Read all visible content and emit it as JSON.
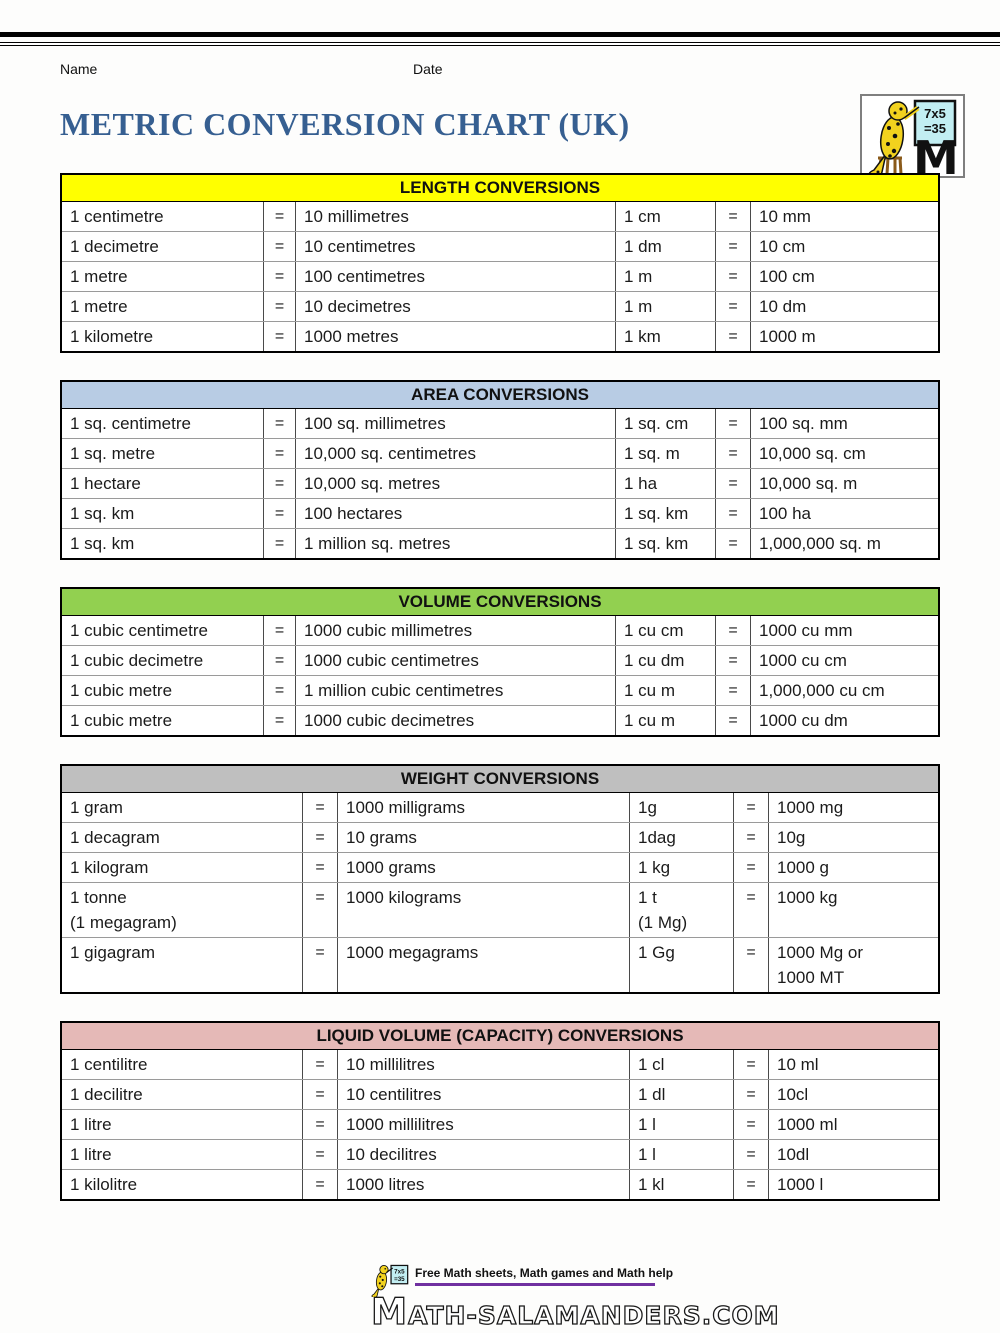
{
  "page": {
    "name_label": "Name",
    "date_label": "Date",
    "title": "METRIC CONVERSION CHART (UK)",
    "title_color": "#365f91"
  },
  "logo": {
    "board_line1": "7x5",
    "board_line2": "=35",
    "letter": "M"
  },
  "tables": [
    {
      "title": "LENGTH CONVERSIONS",
      "header_color": "#ffff00",
      "rows": [
        [
          "1 centimetre",
          "=",
          "10 millimetres",
          "1 cm",
          "=",
          "10 mm"
        ],
        [
          "1 decimetre",
          "=",
          "10 centimetres",
          "1 dm",
          "=",
          "10 cm"
        ],
        [
          "1 metre",
          "=",
          "100 centimetres",
          "1 m",
          "=",
          "100 cm"
        ],
        [
          "1 metre",
          "=",
          "10 decimetres",
          "1 m",
          "=",
          "10 dm"
        ],
        [
          "1 kilometre",
          "=",
          "1000 metres",
          "1 km",
          "=",
          "1000 m"
        ]
      ]
    },
    {
      "title": "AREA CONVERSIONS",
      "header_color": "#b8cce4",
      "rows": [
        [
          "1 sq. centimetre",
          "=",
          "100 sq. millimetres",
          "1 sq. cm",
          "=",
          "100 sq. mm"
        ],
        [
          "1 sq. metre",
          "=",
          "10,000 sq. centimetres",
          "1 sq. m",
          "=",
          "10,000 sq. cm"
        ],
        [
          "1 hectare",
          "=",
          "10,000 sq. metres",
          "1 ha",
          "=",
          "10,000 sq. m"
        ],
        [
          "1 sq. km",
          "=",
          "100 hectares",
          "1 sq. km",
          "=",
          "100 ha"
        ],
        [
          "1 sq. km",
          "=",
          "1 million sq. metres",
          "1 sq. km",
          "=",
          "1,000,000 sq. m"
        ]
      ]
    },
    {
      "title": "VOLUME CONVERSIONS",
      "header_color": "#92d050",
      "rows": [
        [
          "1 cubic centimetre",
          "=",
          "1000 cubic millimetres",
          "1 cu cm",
          "=",
          "1000 cu mm"
        ],
        [
          "1 cubic decimetre",
          "=",
          "1000 cubic centimetres",
          "1 cu dm",
          "=",
          "1000 cu cm"
        ],
        [
          "1 cubic metre",
          "=",
          "1 million cubic centimetres",
          "1 cu m",
          "=",
          "1,000,000 cu cm"
        ],
        [
          "1 cubic metre",
          "=",
          "1000 cubic decimetres",
          "1 cu m",
          "=",
          "1000 cu dm"
        ]
      ]
    },
    {
      "title": "WEIGHT CONVERSIONS",
      "header_color": "#bfbfbf",
      "rows": [
        [
          "1 gram",
          "=",
          "1000 milligrams",
          "1g",
          "=",
          "1000 mg"
        ],
        [
          "1 decagram",
          "=",
          "10 grams",
          "1dag",
          "=",
          "10g"
        ],
        [
          "1 kilogram",
          "=",
          "1000 grams",
          "1 kg",
          "=",
          "1000 g"
        ],
        [
          "1 tonne\n(1 megagram)",
          "=",
          "1000 kilograms",
          "1 t\n(1 Mg)",
          "=",
          "1000 kg"
        ],
        [
          "1 gigagram",
          "=",
          "1000 megagrams",
          "1 Gg",
          "=",
          "1000 Mg or\n1000 MT"
        ]
      ]
    },
    {
      "title": "LIQUID VOLUME (CAPACITY) CONVERSIONS",
      "header_color": "#e5b9b7",
      "rows": [
        [
          "1 centilitre",
          "=",
          "10 millilitres",
          "1 cl",
          "=",
          "10 ml"
        ],
        [
          "1 decilitre",
          "=",
          "10 centilitres",
          "1 dl",
          "=",
          "10cl"
        ],
        [
          "1 litre",
          "=",
          "1000 millilitres",
          "1 l",
          "=",
          "1000 ml"
        ],
        [
          "1 litre",
          "=",
          "10 decilitres",
          "1 l",
          "=",
          "10dl"
        ],
        [
          "1 kilolitre",
          "=",
          "1000 litres",
          "1 kl",
          "=",
          "1000 l"
        ]
      ]
    }
  ],
  "footer": {
    "tagline": "Free Math sheets, Math games and Math help",
    "site": "Math-Salamanders.com",
    "accent_color": "#7030a0"
  }
}
